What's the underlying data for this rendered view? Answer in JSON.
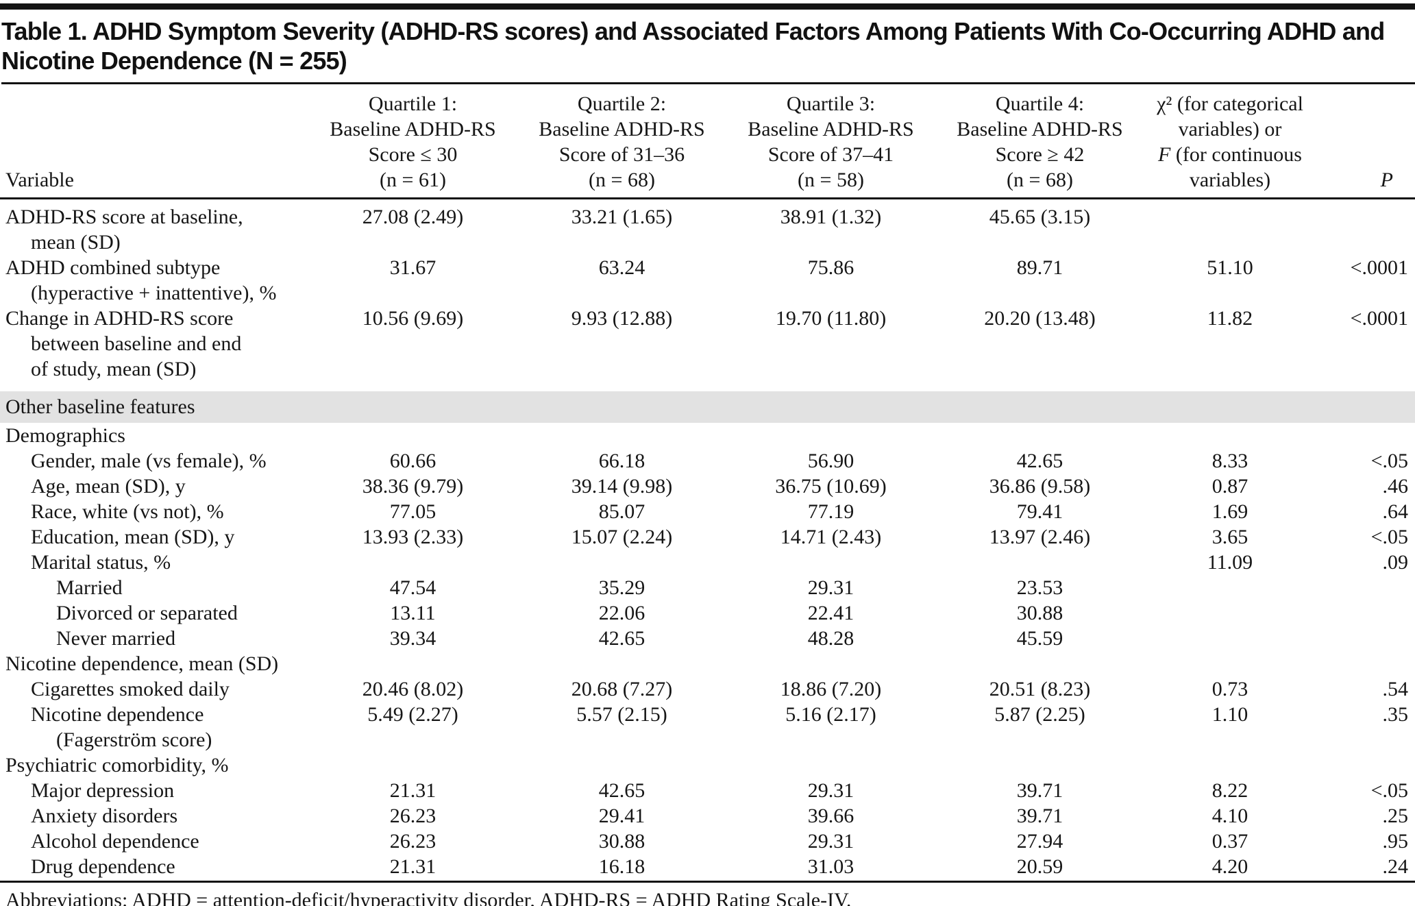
{
  "table": {
    "title": "Table 1. ADHD Symptom Severity (ADHD-RS scores) and Associated Factors Among Patients With Co-Occurring ADHD and\nNicotine Dependence (N = 255)",
    "columns": {
      "variable": "Variable",
      "quartiles": [
        "Quartile 1:\nBaseline ADHD-RS\nScore ≤ 30\n(n = 61)",
        "Quartile 2:\nBaseline ADHD-RS\nScore of 31–36\n(n = 68)",
        "Quartile 3:\nBaseline ADHD-RS\nScore of 37–41\n(n = 58)",
        "Quartile 4:\nBaseline ADHD-RS\nScore ≥ 42\n(n = 68)"
      ],
      "stat_lines": [
        "χ² (for categorical",
        "variables) or",
        "F (for continuous",
        "variables)"
      ],
      "p": "P"
    },
    "rows": [
      {
        "type": "data",
        "indent": 0,
        "label": "ADHD-RS score at baseline,\nmean (SD)",
        "values": [
          "27.08 (2.49)",
          "33.21 (1.65)",
          "38.91 (1.32)",
          "45.65 (3.15)",
          "",
          ""
        ]
      },
      {
        "type": "data",
        "indent": 0,
        "label": "ADHD combined subtype\n(hyperactive + inattentive), %",
        "values": [
          "31.67",
          "63.24",
          "75.86",
          "89.71",
          "51.10",
          "<.0001"
        ]
      },
      {
        "type": "data",
        "indent": 0,
        "label": "Change in ADHD-RS score\nbetween baseline and end\nof study, mean (SD)",
        "values": [
          "10.56 (9.69)",
          "9.93 (12.88)",
          "19.70 (11.80)",
          "20.20 (13.48)",
          "11.82",
          "<.0001"
        ]
      },
      {
        "type": "band",
        "label": "Other baseline features"
      },
      {
        "type": "section",
        "indent": 0,
        "label": "Demographics"
      },
      {
        "type": "data",
        "indent": 1,
        "label": "Gender, male (vs female), %",
        "values": [
          "60.66",
          "66.18",
          "56.90",
          "42.65",
          "8.33",
          "<.05"
        ]
      },
      {
        "type": "data",
        "indent": 1,
        "label": "Age, mean (SD), y",
        "values": [
          "38.36 (9.79)",
          "39.14 (9.98)",
          "36.75 (10.69)",
          "36.86 (9.58)",
          "0.87",
          ".46"
        ]
      },
      {
        "type": "data",
        "indent": 1,
        "label": "Race, white (vs not), %",
        "values": [
          "77.05",
          "85.07",
          "77.19",
          "79.41",
          "1.69",
          ".64"
        ]
      },
      {
        "type": "data",
        "indent": 1,
        "label": "Education, mean (SD), y",
        "values": [
          "13.93 (2.33)",
          "15.07 (2.24)",
          "14.71 (2.43)",
          "13.97 (2.46)",
          "3.65",
          "<.05"
        ]
      },
      {
        "type": "data",
        "indent": 1,
        "label": "Marital status, %",
        "values": [
          "",
          "",
          "",
          "",
          "11.09",
          ".09"
        ]
      },
      {
        "type": "data",
        "indent": 2,
        "label": "Married",
        "values": [
          "47.54",
          "35.29",
          "29.31",
          "23.53",
          "",
          ""
        ]
      },
      {
        "type": "data",
        "indent": 2,
        "label": "Divorced or separated",
        "values": [
          "13.11",
          "22.06",
          "22.41",
          "30.88",
          "",
          ""
        ]
      },
      {
        "type": "data",
        "indent": 2,
        "label": "Never married",
        "values": [
          "39.34",
          "42.65",
          "48.28",
          "45.59",
          "",
          ""
        ]
      },
      {
        "type": "section",
        "indent": 0,
        "label": "Nicotine dependence, mean (SD)"
      },
      {
        "type": "data",
        "indent": 1,
        "label": "Cigarettes smoked daily",
        "values": [
          "20.46 (8.02)",
          "20.68 (7.27)",
          "18.86 (7.20)",
          "20.51 (8.23)",
          "0.73",
          ".54"
        ]
      },
      {
        "type": "data",
        "indent": 1,
        "label": "Nicotine dependence\n(Fagerström score)",
        "values": [
          "5.49 (2.27)",
          "5.57 (2.15)",
          "5.16 (2.17)",
          "5.87 (2.25)",
          "1.10",
          ".35"
        ]
      },
      {
        "type": "section",
        "indent": 0,
        "label": "Psychiatric comorbidity, %",
        "values": []
      },
      {
        "type": "data",
        "indent": 1,
        "label": "Major depression",
        "values": [
          "21.31",
          "42.65",
          "29.31",
          "39.71",
          "8.22",
          "<.05"
        ]
      },
      {
        "type": "data",
        "indent": 1,
        "label": "Anxiety disorders",
        "values": [
          "26.23",
          "29.41",
          "39.66",
          "39.71",
          "4.10",
          ".25"
        ]
      },
      {
        "type": "data",
        "indent": 1,
        "label": "Alcohol dependence",
        "values": [
          "26.23",
          "30.88",
          "29.31",
          "27.94",
          "0.37",
          ".95"
        ]
      },
      {
        "type": "data",
        "indent": 1,
        "label": "Drug dependence",
        "values": [
          "21.31",
          "16.18",
          "31.03",
          "20.59",
          "4.20",
          ".24"
        ]
      }
    ],
    "footnote": "Abbreviations: ADHD = attention-deficit/hyperactivity disorder, ADHD-RS = ADHD Rating Scale-IV."
  }
}
